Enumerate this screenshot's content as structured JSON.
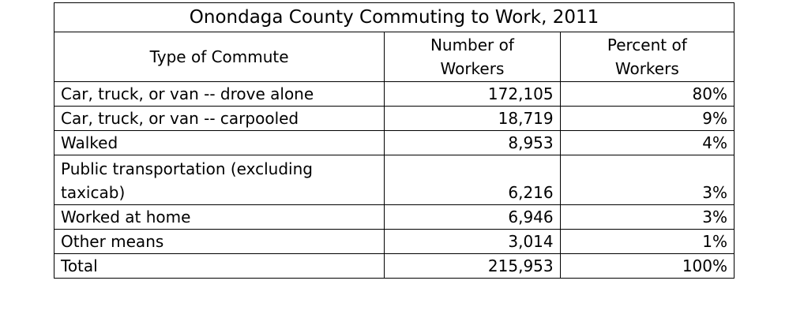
{
  "chart_data": {
    "type": "table",
    "title": "Onondaga County Commuting to Work, 2011",
    "columns": [
      "Type of Commute",
      "Number of Workers",
      "Percent of Workers"
    ],
    "rows": [
      {
        "type": "Car, truck, or van -- drove alone",
        "workers": "172,105",
        "percent": "80%"
      },
      {
        "type": "Car, truck, or van -- carpooled",
        "workers": "18,719",
        "percent": "9%"
      },
      {
        "type": "Walked",
        "workers": "8,953",
        "percent": "4%"
      },
      {
        "type": "Public transportation (excluding taxicab)",
        "workers": "6,216",
        "percent": "3%"
      },
      {
        "type": "Worked at home",
        "workers": "6,946",
        "percent": "3%"
      },
      {
        "type": "Other means",
        "workers": "3,014",
        "percent": "1%"
      },
      {
        "type": "Total",
        "workers": "215,953",
        "percent": "100%"
      }
    ]
  }
}
